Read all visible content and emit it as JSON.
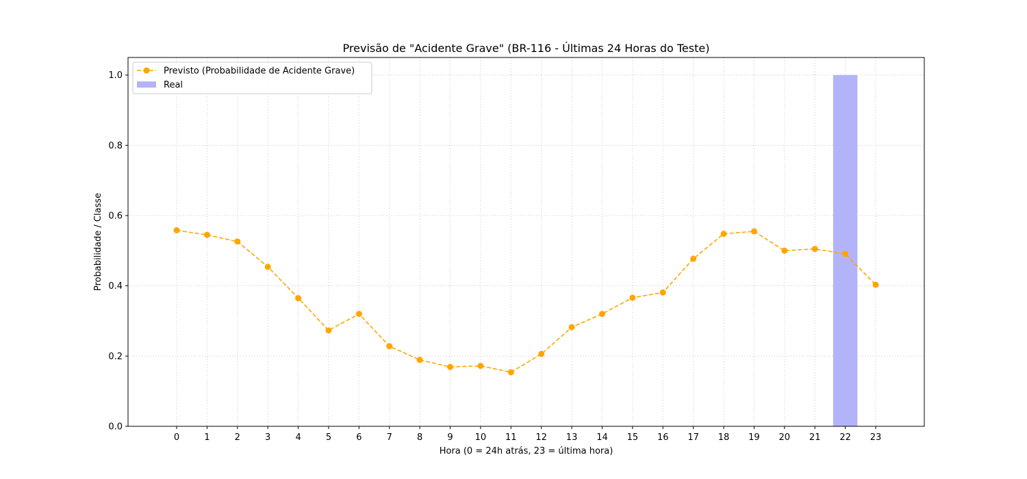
{
  "chart_data": {
    "type": "line",
    "title": "Previsão de \"Acidente Grave\" (BR-116 - Últimas 24 Horas do Teste)",
    "xlabel": "Hora (0 = 24h atrás, 23 = última hora)",
    "ylabel": "Probabilidade / Classe",
    "x": [
      0,
      1,
      2,
      3,
      4,
      5,
      6,
      7,
      8,
      9,
      10,
      11,
      12,
      13,
      14,
      15,
      16,
      17,
      18,
      19,
      20,
      21,
      22,
      23
    ],
    "xlim": [
      -1.6,
      24.6
    ],
    "ylim": [
      0,
      1.05
    ],
    "yticks": [
      "0.0",
      "0.2",
      "0.4",
      "0.6",
      "0.8",
      "1.0"
    ],
    "grid": true,
    "legend_position": "top-left",
    "series": [
      {
        "name": "Previsto (Probabilidade de Acidente Grave)",
        "kind": "line",
        "style": "dashed",
        "marker": "circle",
        "color": "#ffa500",
        "values": [
          0.558,
          0.545,
          0.526,
          0.454,
          0.365,
          0.273,
          0.32,
          0.228,
          0.189,
          0.169,
          0.172,
          0.154,
          0.206,
          0.282,
          0.32,
          0.366,
          0.381,
          0.477,
          0.548,
          0.555,
          0.5,
          0.505,
          0.491,
          0.403
        ]
      },
      {
        "name": "Real",
        "kind": "bar",
        "color": "#b3b3fa",
        "values": [
          0,
          0,
          0,
          0,
          0,
          0,
          0,
          0,
          0,
          0,
          0,
          0,
          0,
          0,
          0,
          0,
          0,
          0,
          0,
          0,
          0,
          0,
          1,
          0
        ]
      }
    ]
  }
}
